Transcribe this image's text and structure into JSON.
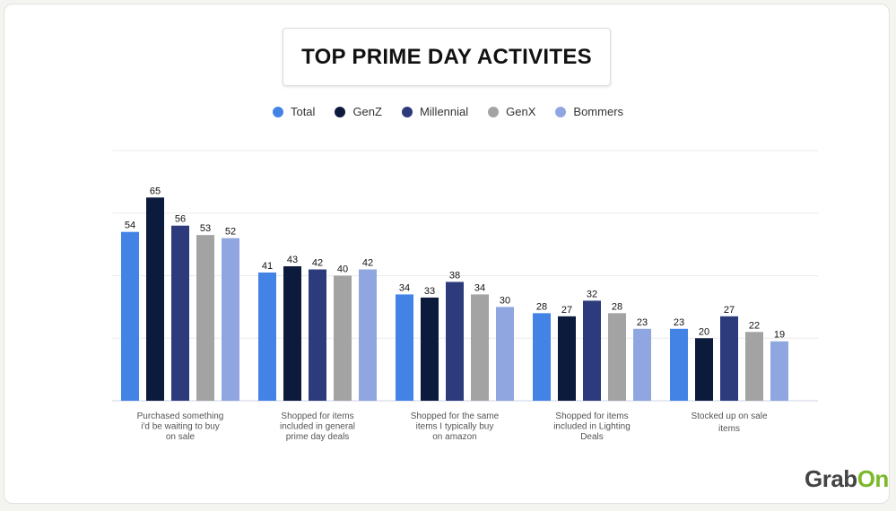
{
  "chart_data": {
    "type": "bar",
    "title": "TOP PRIME DAY ACTIVITES",
    "categories": [
      [
        "Purchased something",
        "i'd be waiting to buy",
        "on sale"
      ],
      [
        "Shopped for items",
        "included in general",
        "prime day deals"
      ],
      [
        "Shopped for the same",
        "items I typically buy",
        "on amazon"
      ],
      [
        "Shopped for items",
        "included in Lighting",
        "Deals"
      ],
      [
        "Stocked up on sale",
        "items"
      ]
    ],
    "series": [
      {
        "name": "Total",
        "color": "#4383e6",
        "values": [
          54,
          41,
          34,
          28,
          23
        ]
      },
      {
        "name": "GenZ",
        "color": "#0c1a3c",
        "values": [
          65,
          43,
          33,
          27,
          20
        ]
      },
      {
        "name": "Millennial",
        "color": "#2d3b7c",
        "values": [
          56,
          42,
          38,
          32,
          27
        ]
      },
      {
        "name": "GenX",
        "color": "#a3a3a3",
        "values": [
          53,
          40,
          34,
          28,
          22
        ]
      },
      {
        "name": "Bommers",
        "color": "#8fa6e0",
        "values": [
          52,
          42,
          30,
          23,
          19
        ]
      }
    ],
    "ylim": [
      0,
      80
    ],
    "grid": true,
    "legend": "top",
    "xlabel": "",
    "ylabel": ""
  },
  "logo": {
    "part1": "Grab",
    "part2": "On"
  }
}
